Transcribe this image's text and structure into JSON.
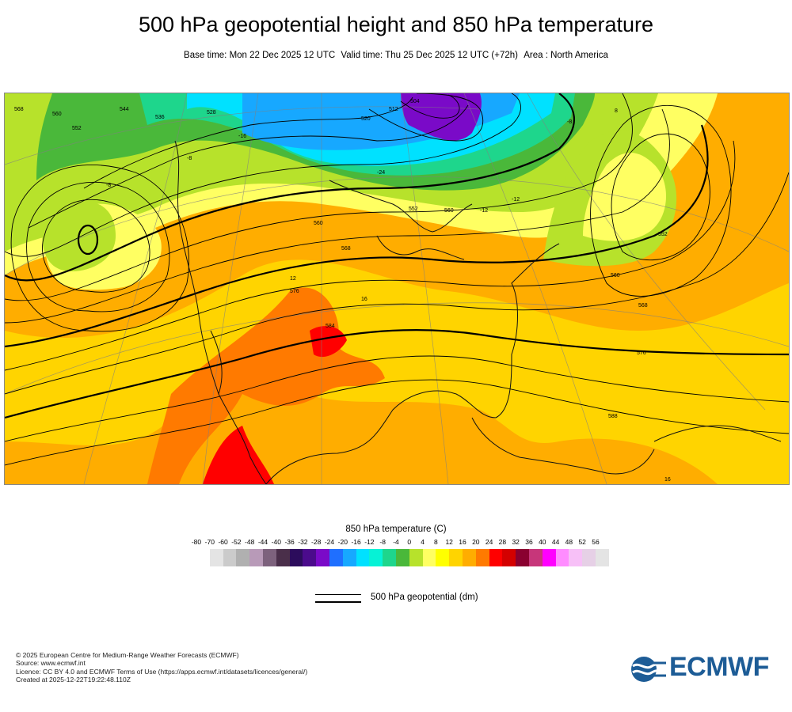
{
  "header": {
    "title": "500 hPa geopotential height and 850 hPa temperature",
    "base_time": "Base time: Mon 22 Dec 2025 12 UTC",
    "valid_time": "Valid time: Thu 25 Dec 2025 12 UTC (+72h)",
    "area": "Area : North America"
  },
  "map": {
    "height_labels": [
      "568",
      "560",
      "552",
      "544",
      "536",
      "528",
      "520",
      "512",
      "504",
      "560",
      "552",
      "560",
      "568",
      "576",
      "560",
      "568",
      "552",
      "576",
      "584",
      "588"
    ],
    "temp_labels": [
      "-8",
      "-16",
      "-24",
      "-8",
      "16",
      "12",
      "-12",
      "-8",
      "-12",
      "8",
      "16"
    ]
  },
  "legend": {
    "title": "850 hPa temperature (C)",
    "ticks": [
      "-80",
      "-70",
      "-60",
      "-52",
      "-48",
      "-44",
      "-40",
      "-36",
      "-32",
      "-28",
      "-24",
      "-20",
      "-16",
      "-12",
      "-8",
      "-4",
      "0",
      "4",
      "8",
      "12",
      "16",
      "20",
      "24",
      "28",
      "32",
      "36",
      "40",
      "44",
      "48",
      "52",
      "56"
    ],
    "colors": [
      "#e4e4e4",
      "#cbcbcb",
      "#b0b0b0",
      "#b89ab8",
      "#7d627d",
      "#4a2f4a",
      "#2c0c5c",
      "#4b0b8c",
      "#7a0ac8",
      "#1f6fff",
      "#17a8ff",
      "#00e1ff",
      "#06f2d6",
      "#1ed68c",
      "#4ab83a",
      "#b7e22b",
      "#ffff62",
      "#ffff00",
      "#ffd400",
      "#ffad00",
      "#ff7a00",
      "#ff0000",
      "#d40000",
      "#8a0030",
      "#c7367a",
      "#ff00ff",
      "#ff8cff",
      "#f7c0f7",
      "#e6d0e6",
      "#e4e4e4"
    ],
    "geopotential_label": "500 hPa geopotential (dm)"
  },
  "footer": {
    "copyright": "© 2025 European Centre for Medium-Range Weather Forecasts (ECMWF)",
    "source": "Source: www.ecmwf.int",
    "licence": "Licence: CC BY 4.0 and ECMWF Terms of Use (https://apps.ecmwf.int/datasets/licences/general/)",
    "created": "Created at 2025-12-22T19:22:48.110Z"
  },
  "logo": {
    "text": "ECMWF",
    "color": "#1d5c96"
  }
}
